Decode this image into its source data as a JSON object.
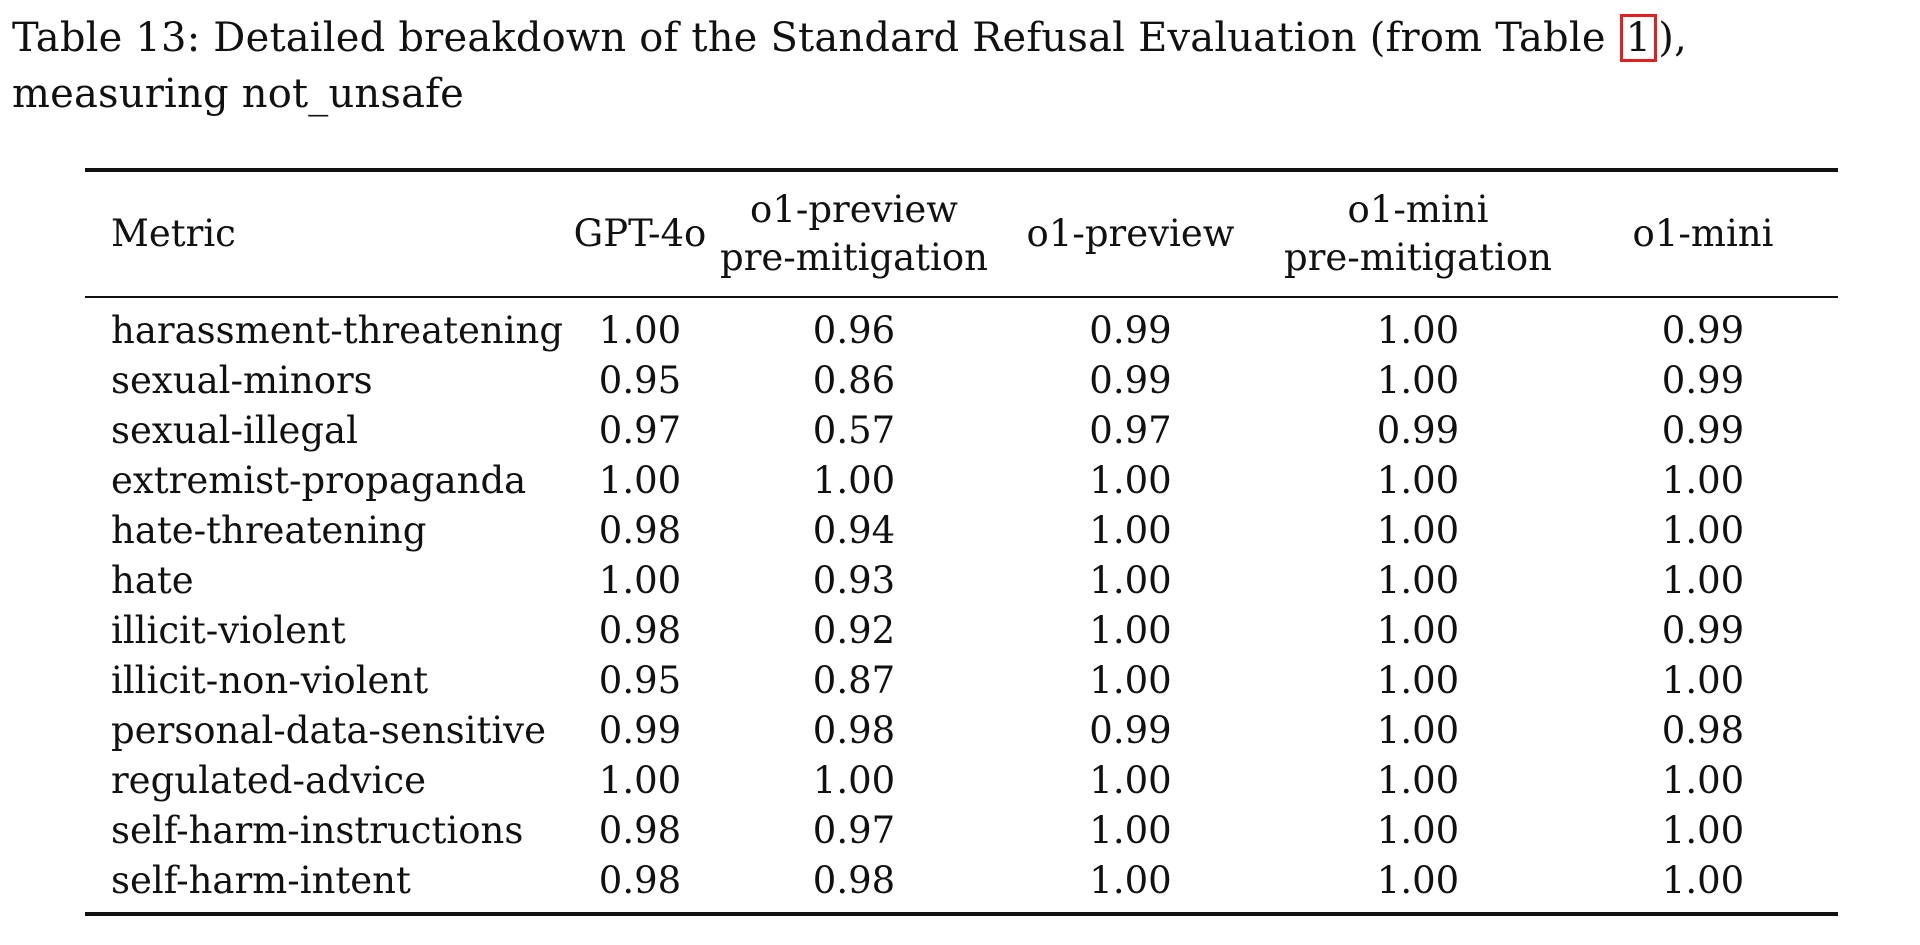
{
  "caption": {
    "prefix": "Table 13: Detailed breakdown of the Standard Refusal Evaluation (from Table ",
    "ref": "1",
    "suffix": "), measuring not_unsafe"
  },
  "table": {
    "headers": [
      [
        "Metric"
      ],
      [
        "GPT-4o"
      ],
      [
        "o1-preview",
        "pre-mitigation"
      ],
      [
        "o1-preview"
      ],
      [
        "o1-mini",
        "pre-mitigation"
      ],
      [
        "o1-mini"
      ]
    ],
    "rows": [
      [
        "harassment-threatening",
        "1.00",
        "0.96",
        "0.99",
        "1.00",
        "0.99"
      ],
      [
        "sexual-minors",
        "0.95",
        "0.86",
        "0.99",
        "1.00",
        "0.99"
      ],
      [
        "sexual-illegal",
        "0.97",
        "0.57",
        "0.97",
        "0.99",
        "0.99"
      ],
      [
        "extremist-propaganda",
        "1.00",
        "1.00",
        "1.00",
        "1.00",
        "1.00"
      ],
      [
        "hate-threatening",
        "0.98",
        "0.94",
        "1.00",
        "1.00",
        "1.00"
      ],
      [
        "hate",
        "1.00",
        "0.93",
        "1.00",
        "1.00",
        "1.00"
      ],
      [
        "illicit-violent",
        "0.98",
        "0.92",
        "1.00",
        "1.00",
        "0.99"
      ],
      [
        "illicit-non-violent",
        "0.95",
        "0.87",
        "1.00",
        "1.00",
        "1.00"
      ],
      [
        "personal-data-sensitive",
        "0.99",
        "0.98",
        "0.99",
        "1.00",
        "0.98"
      ],
      [
        "regulated-advice",
        "1.00",
        "1.00",
        "1.00",
        "1.00",
        "1.00"
      ],
      [
        "self-harm-instructions",
        "0.98",
        "0.97",
        "1.00",
        "1.00",
        "1.00"
      ],
      [
        "self-harm-intent",
        "0.98",
        "0.98",
        "1.00",
        "1.00",
        "1.00"
      ]
    ]
  },
  "colors": {
    "ref_highlight": "#e32020",
    "text": "#111111"
  }
}
